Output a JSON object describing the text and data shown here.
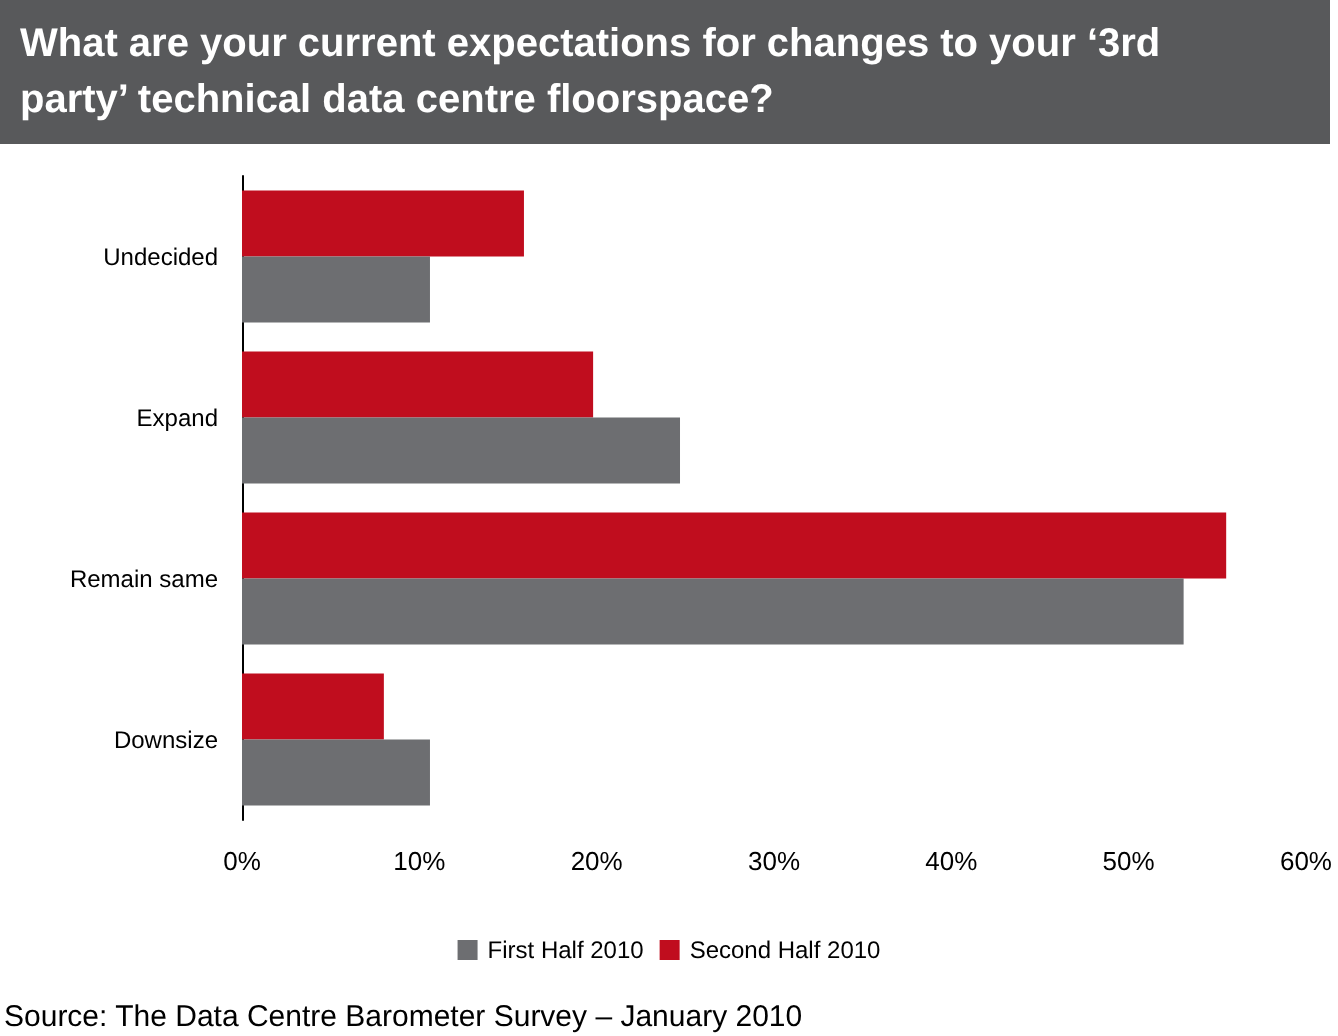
{
  "chart_data": {
    "type": "bar",
    "orientation": "horizontal",
    "title": "What are your current expectations for changes to your ‘3rd party’ technical data centre floorspace?",
    "categories": [
      "Undecided",
      "Expand",
      "Remain same",
      "Downsize"
    ],
    "series": [
      {
        "name": "First Half 2010",
        "color": "#6d6e71",
        "values": [
          10.6,
          24.7,
          53.1,
          10.6
        ]
      },
      {
        "name": "Second Half 2010",
        "color": "#c00d1e",
        "values": [
          15.9,
          19.8,
          55.5,
          8
        ]
      }
    ],
    "xlim": [
      0,
      60
    ],
    "xticks": [
      {
        "value": 0,
        "label": "0%"
      },
      {
        "value": 10,
        "label": "10%"
      },
      {
        "value": 20,
        "label": "20%"
      },
      {
        "value": 30,
        "label": "30%"
      },
      {
        "value": 40,
        "label": "40%"
      },
      {
        "value": 50,
        "label": "50%"
      },
      {
        "value": 60,
        "label": "60%"
      }
    ],
    "grid": false,
    "legend": "bottom",
    "annotations": [
      "Source: The Data Centre Barometer Survey – January 2010"
    ]
  }
}
